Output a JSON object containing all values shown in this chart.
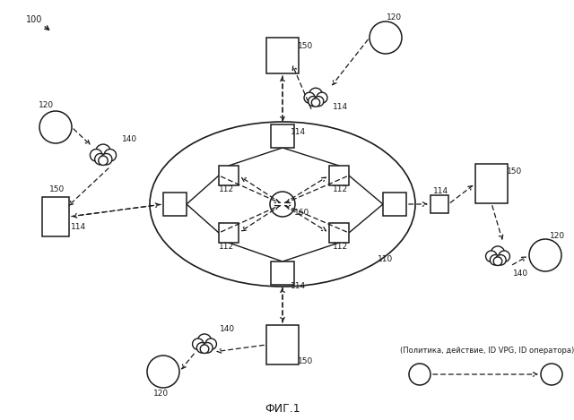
{
  "title": "ФИГ.1",
  "label_100": "100",
  "label_110": "110",
  "label_112": "112",
  "label_114": "114",
  "label_120": "120",
  "label_140": "140",
  "label_150": "150",
  "label_160": "160",
  "legend_text": "(Политика, действие, ID VPG, ID оператора)",
  "bg_color": "#ffffff",
  "lc": "#1a1a1a"
}
